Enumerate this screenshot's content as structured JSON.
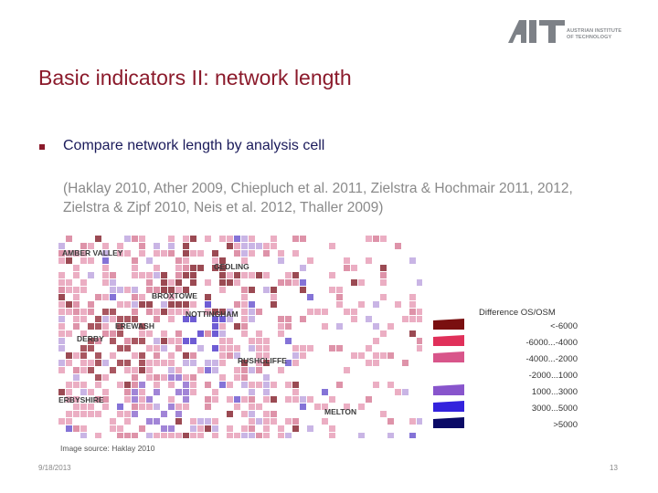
{
  "header": {
    "logo_letters": "AIT",
    "logo_line1": "AUSTRIAN INSTITUTE",
    "logo_line2": "OF TECHNOLOGY"
  },
  "slide": {
    "title": "Basic indicators II: network length",
    "bullet": "Compare network length by analysis cell",
    "references": "(Haklay 2010, Ather 2009, Chiepluch et al. 2011, Zielstra & Hochmair 2011, 2012, Zielstra & Zipf 2010, Neis et al. 2012, Thaller 2009)"
  },
  "map": {
    "labels": [
      "AMBER VALLEY",
      "GEDLING",
      "BROXTOWE",
      "NOTTINGHAM",
      "EREWASH",
      "DERBY",
      "RUSHCLIFFE",
      "ERBYSHIRE",
      "MELTON"
    ]
  },
  "legend": {
    "title": "Difference OS/OSM",
    "items": [
      {
        "label": "<-6000",
        "color": "#7a0f10"
      },
      {
        "label": "-6000...-4000",
        "color": "#e0305a"
      },
      {
        "label": "-4000...-2000",
        "color": "#d8558a"
      },
      {
        "label": "-2000...1000",
        "color": ""
      },
      {
        "label": "1000...3000",
        "color": "#8855cc"
      },
      {
        "label": "3000...5000",
        "color": "#3322dd"
      },
      {
        "label": ">5000",
        "color": "#0a0a66"
      }
    ]
  },
  "footer": {
    "image_source": "Image source: Haklay 2010",
    "date": "9/18/2013",
    "page": "13"
  }
}
